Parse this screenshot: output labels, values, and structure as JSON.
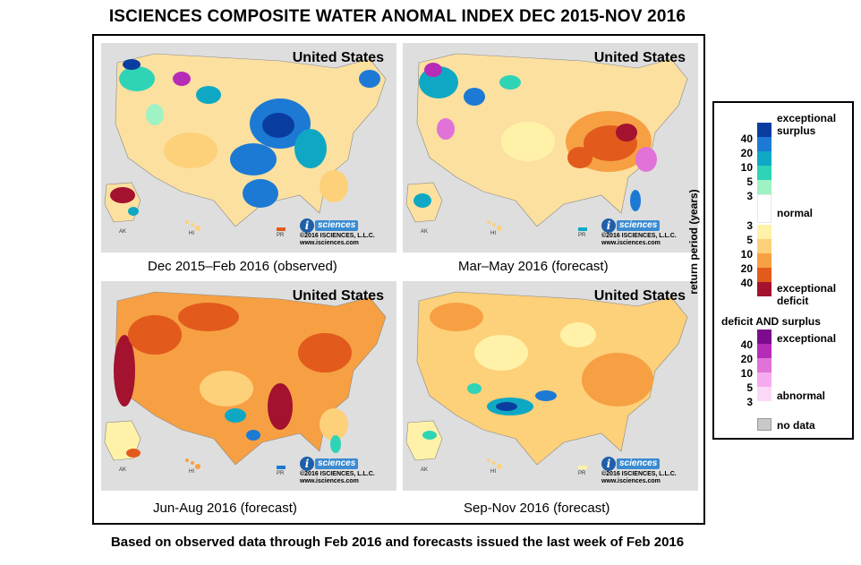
{
  "title": "ISCIENCES COMPOSITE WATER ANOMAL INDEX DEC 2015-NOV 2016",
  "footer": "Based on observed data through Feb 2016 and forecasts issued the last week of Feb 2016",
  "map_labels": {
    "country": "United States",
    "alaska": "AK",
    "hawaii": "HI",
    "puerto_rico": "PR",
    "logo_letter": "i",
    "logo_word": "sciences",
    "copyright": "©2016 ISCIENCES, L.L.C.",
    "url": "www.isciences.com"
  },
  "panels": [
    {
      "caption": "Dec 2015–Feb 2016 (observed)",
      "dominant": "surplus-east-midwest"
    },
    {
      "caption": "Mar–May 2016 (forecast)",
      "dominant": "deficit-southeast"
    },
    {
      "caption": "Jun-Aug 2016 (forecast)",
      "dominant": "deficit-widespread-severe"
    },
    {
      "caption": "Sep-Nov 2016 (forecast)",
      "dominant": "deficit-widespread-moderate"
    }
  ],
  "legend": {
    "axis_label": "return period (years)",
    "surplus_title_1": "exceptional",
    "surplus_title_2": "surplus",
    "normal_label": "normal",
    "deficit_title_1": "exceptional",
    "deficit_title_2": "deficit",
    "both_heading": "deficit AND surplus",
    "both_exceptional": "exceptional",
    "both_abnormal": "abnormal",
    "no_data": "no data",
    "surplus_ticks": [
      "40",
      "20",
      "10",
      "5",
      "3"
    ],
    "deficit_ticks": [
      "3",
      "5",
      "10",
      "20",
      "40"
    ],
    "both_ticks": [
      "40",
      "20",
      "10",
      "5",
      "3"
    ],
    "colors": {
      "surplus": [
        "#0a3da0",
        "#1c7ad4",
        "#0fa8c4",
        "#2fd4b6",
        "#9ff2c4"
      ],
      "normal": "#ffffff",
      "deficit": [
        "#fff2a8",
        "#fdd07a",
        "#f6a043",
        "#e25a1c",
        "#a3122e"
      ],
      "both": [
        "#7b0d8c",
        "#b62cb6",
        "#e072d8",
        "#f5acee",
        "#fbd8f6"
      ],
      "no_data": "#c8c8c8",
      "land_base": "#fcd88e",
      "water": "#dedede"
    }
  }
}
